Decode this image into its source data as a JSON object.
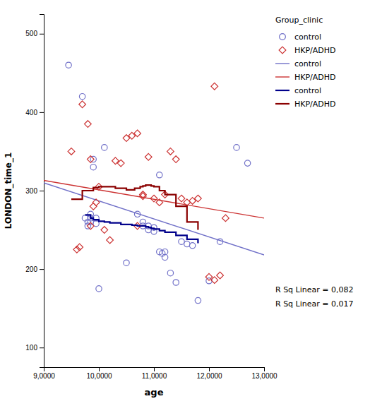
{
  "chart_data": {
    "type": "scatter",
    "xlabel": "age",
    "ylabel": "LONDON_time_1",
    "xlim": [
      9000,
      13000
    ],
    "ylim": [
      75,
      525
    ],
    "xticks": [
      {
        "value": 9000,
        "label": "9,0000"
      },
      {
        "value": 10000,
        "label": "10,0000"
      },
      {
        "value": 11000,
        "label": "11,0000"
      },
      {
        "value": 12000,
        "label": "12,0000"
      },
      {
        "value": 13000,
        "label": "13,0000"
      }
    ],
    "yticks": [
      100,
      200,
      300,
      400,
      500
    ],
    "legend": "right",
    "legend_title": "Group_clinic",
    "annotations": [
      "R Sq Linear = 0,082",
      "R Sq Linear = 0,017"
    ],
    "series": [
      {
        "name": "control",
        "type": "scatter",
        "marker": "circle",
        "color": "#7070c8",
        "x": [
          9450,
          9700,
          9750,
          9800,
          9800,
          9850,
          9850,
          9850,
          9900,
          9900,
          9950,
          9950,
          10000,
          10100,
          10500,
          10700,
          10800,
          10800,
          10900,
          10900,
          11000,
          11000,
          11100,
          11100,
          11150,
          11200,
          11200,
          11300,
          11400,
          11500,
          11600,
          11700,
          11800,
          12000,
          12200,
          12500,
          12700
        ],
        "values": [
          460,
          420,
          265,
          260,
          255,
          270,
          265,
          260,
          340,
          330,
          265,
          258,
          175,
          355,
          208,
          270,
          260,
          255,
          255,
          250,
          253,
          248,
          320,
          222,
          220,
          222,
          215,
          195,
          183,
          235,
          232,
          230,
          160,
          185,
          235,
          355,
          335
        ]
      },
      {
        "name": "HKP/ADHD",
        "type": "scatter",
        "marker": "diamond",
        "color": "#cc3333",
        "x": [
          9500,
          9600,
          9650,
          9700,
          9800,
          9850,
          9850,
          9900,
          9950,
          10000,
          10100,
          10200,
          10300,
          10400,
          10500,
          10600,
          10700,
          10700,
          10800,
          10800,
          10900,
          11000,
          11100,
          11200,
          11300,
          11400,
          11500,
          11600,
          11700,
          11800,
          12000,
          12100,
          12100,
          12200,
          12300
        ],
        "values": [
          350,
          225,
          228,
          410,
          385,
          340,
          255,
          280,
          285,
          305,
          250,
          237,
          338,
          335,
          367,
          370,
          373,
          255,
          295,
          293,
          343,
          290,
          285,
          295,
          350,
          340,
          290,
          285,
          287,
          290,
          190,
          433,
          186,
          192,
          265
        ]
      },
      {
        "name": "control",
        "type": "line",
        "line_style": "solid",
        "color": "#7070c8",
        "x": [
          9000,
          13000
        ],
        "values": [
          310,
          218
        ]
      },
      {
        "name": "HKP/ADHD",
        "type": "line",
        "line_style": "solid",
        "color": "#cc3333",
        "x": [
          9000,
          13000
        ],
        "values": [
          313,
          265
        ]
      },
      {
        "name": "control",
        "type": "line",
        "line_style": "step",
        "color": "#00008b",
        "x": [
          9750,
          9850,
          9900,
          10000,
          10100,
          10200,
          10400,
          10600,
          10700,
          10800,
          10850,
          10900,
          10950,
          11000,
          11100,
          11200,
          11400,
          11600,
          11800
        ],
        "values": [
          269,
          265,
          263,
          261,
          260,
          259,
          257,
          256,
          255,
          255,
          254,
          253,
          252,
          251,
          249,
          247,
          243,
          238,
          233
        ]
      },
      {
        "name": "HKP/ADHD",
        "type": "line",
        "line_style": "step",
        "color": "#8b0000",
        "x": [
          9500,
          9700,
          9900,
          10000,
          10100,
          10300,
          10500,
          10650,
          10750,
          10800,
          10850,
          10900,
          10950,
          11000,
          11100,
          11200,
          11400,
          11600,
          11800
        ],
        "values": [
          289,
          300,
          304,
          305,
          305,
          303,
          301,
          303,
          305,
          306,
          307,
          307,
          306,
          305,
          300,
          295,
          280,
          260,
          250
        ]
      }
    ]
  }
}
